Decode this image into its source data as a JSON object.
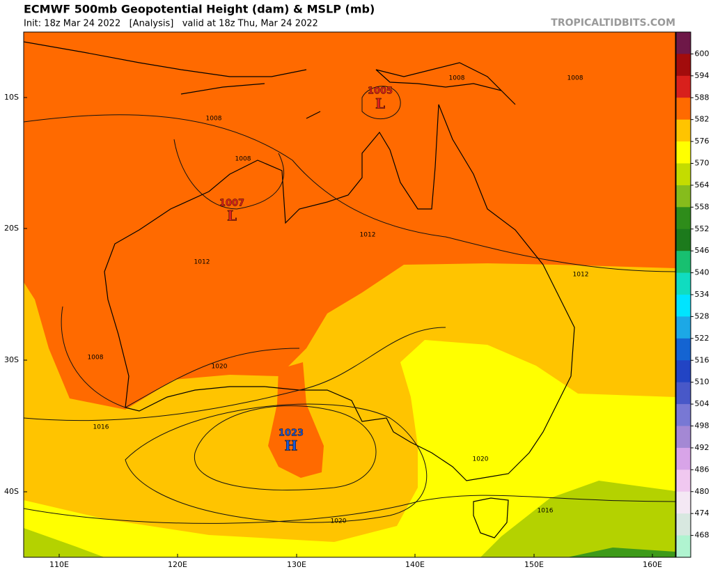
{
  "header": {
    "title": "ECMWF 500mb Geopotential Height (dam) & MSLP (mb)",
    "subtitle": "Init: 18z Mar 24 2022   [Analysis]   valid at 18z Thu, Mar 24 2022",
    "brand": "TROPICALTIDBITS.COM"
  },
  "map": {
    "lat_labels": [
      "10S",
      "20S",
      "30S",
      "40S"
    ],
    "lon_labels": [
      "110E",
      "120E",
      "130E",
      "140E",
      "150E",
      "160E"
    ],
    "centers": [
      {
        "value": "1005",
        "letter": "L"
      },
      {
        "value": "1007",
        "letter": "L"
      },
      {
        "value": "1023",
        "letter": "H"
      }
    ],
    "isobar_labels": [
      "1008",
      "1008",
      "1008",
      "1008",
      "1008",
      "1012",
      "1012",
      "1012",
      "1016",
      "1016",
      "1020",
      "1020",
      "1020"
    ]
  },
  "colorbar": {
    "levels": [
      600,
      594,
      588,
      582,
      576,
      570,
      564,
      558,
      552,
      546,
      540,
      534,
      528,
      522,
      516,
      510,
      504,
      498,
      492,
      486,
      480,
      474,
      468
    ],
    "colors": [
      "#6e1848",
      "#a20c0c",
      "#d8201c",
      "#ff6a00",
      "#ffc400",
      "#ffff00",
      "#c4dc00",
      "#86bc1c",
      "#2e8c1a",
      "#1c7a1c",
      "#18c070",
      "#10dcc0",
      "#00e4ff",
      "#1ca8e6",
      "#1464d2",
      "#2244c4",
      "#4858c8",
      "#7878d4",
      "#a488d4",
      "#d8a4e8",
      "#f0c8f0",
      "#f4e8f4",
      "#d8e8e0",
      "#b0f4d0"
    ]
  }
}
